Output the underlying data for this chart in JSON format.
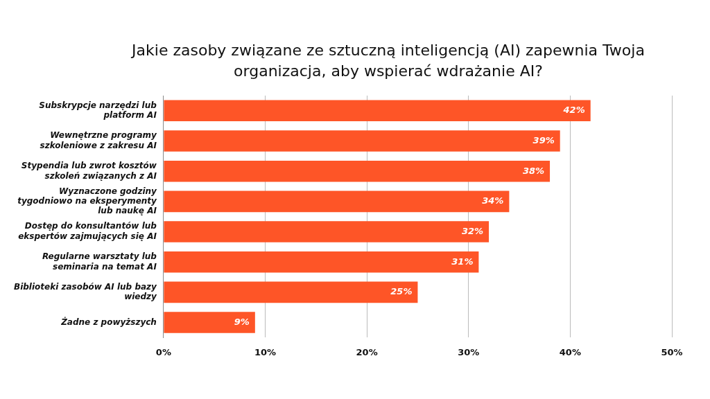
{
  "chart_data": {
    "type": "bar",
    "orientation": "horizontal",
    "title": "Jakie zasoby związane ze sztuczną inteligencją (AI) zapewnia Twoja organizacja, aby wspierać wdrażanie AI?",
    "categories": [
      "Subskrypcje narzędzi lub platform AI",
      "Wewnętrzne programy szkoleniowe z zakresu AI",
      "Stypendia lub zwrot kosztów szkoleń związanych z AI",
      "Wyznaczone godziny tygodniowo na eksperymenty lub naukę AI",
      "Dostęp do konsultantów lub ekspertów zajmujących się AI",
      "Regularne warsztaty lub seminaria na temat AI",
      "Biblioteki zasobów AI lub bazy wiedzy",
      "Żadne z powyższych"
    ],
    "values": [
      42,
      39,
      38,
      34,
      32,
      31,
      25,
      9
    ],
    "color": "#fe5527",
    "xlim": [
      0,
      50
    ],
    "xticks": [
      {
        "value": 0,
        "label": "0%"
      },
      {
        "value": 10,
        "label": "10%"
      },
      {
        "value": 20,
        "label": "20%"
      },
      {
        "value": 30,
        "label": "30%"
      },
      {
        "value": 40,
        "label": "40%"
      },
      {
        "value": 50,
        "label": "50%"
      }
    ],
    "value_labels": [
      "42%",
      "39%",
      "38%",
      "34%",
      "32%",
      "31%",
      "25%",
      "9%"
    ],
    "grid": "x",
    "legend": false
  }
}
